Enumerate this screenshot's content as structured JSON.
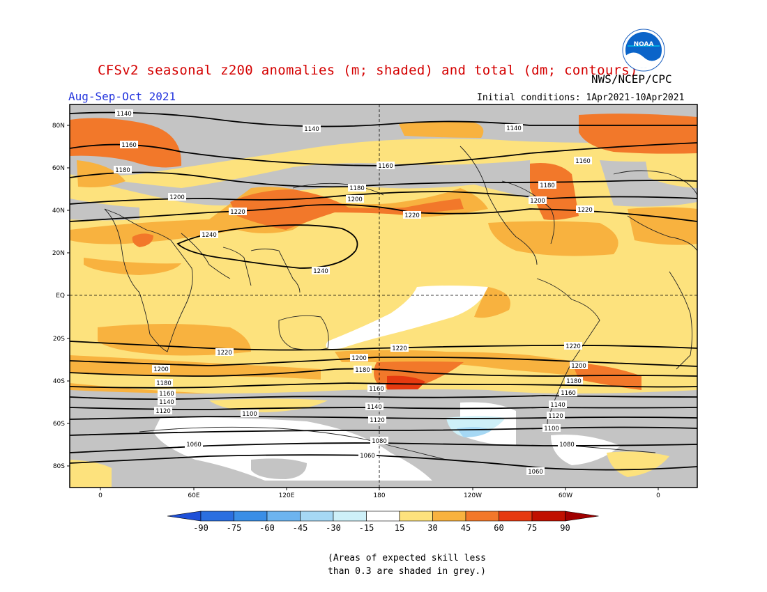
{
  "title": "CFSv2 seasonal z200 anomalies (m; shaded) and total (dm; contours)",
  "agency": "NWS/NCEP/CPC",
  "season": "Aug-Sep-Oct 2021",
  "initial_conditions": "Initial conditions: 1Apr2021-10Apr2021",
  "logo_text": "NOAA",
  "note_line1": "(Areas of expected skill less",
  "note_line2": "than 0.3 are shaded in grey.)",
  "axes": {
    "lat_ticks": [
      "80N",
      "60N",
      "40N",
      "20N",
      "EQ",
      "20S",
      "40S",
      "60S",
      "80S"
    ],
    "lon_ticks": [
      "0",
      "60E",
      "120E",
      "180",
      "120W",
      "60W",
      "0"
    ]
  },
  "colorbar": {
    "labels": [
      "-90",
      "-75",
      "-60",
      "-45",
      "-30",
      "-15",
      "15",
      "30",
      "45",
      "60",
      "75",
      "90"
    ],
    "colors": [
      "#1e50d8",
      "#2b6fe0",
      "#3a8ee6",
      "#6db4ef",
      "#a6d8f4",
      "#cef0f8",
      "#ffffff",
      "#fde27d",
      "#f8b23f",
      "#f2782a",
      "#e63a10",
      "#c01000",
      "#a00000"
    ]
  },
  "colors": {
    "grey_low_skill": "#c4c4c4",
    "light_anom": "#fde27d",
    "medium_anom": "#f8b23f",
    "strong_anom": "#f2782a",
    "very_strong_anom": "#e63a10",
    "title_red": "#d40000",
    "season_blue": "#2233dd"
  },
  "contour_labels": [
    "1140",
    "1140",
    "1140",
    "1160",
    "1160",
    "1160",
    "1180",
    "1180",
    "1180",
    "1200",
    "1200",
    "1200",
    "1220",
    "1220",
    "1220",
    "1240",
    "1240",
    "1220",
    "1220",
    "1220",
    "1200",
    "1200",
    "1200",
    "1180",
    "1180",
    "1180",
    "1160",
    "1160",
    "1160",
    "1140",
    "1140",
    "1140",
    "1120",
    "1120",
    "1120",
    "1100",
    "1100",
    "1080",
    "1080",
    "1060",
    "1060",
    "1060"
  ]
}
